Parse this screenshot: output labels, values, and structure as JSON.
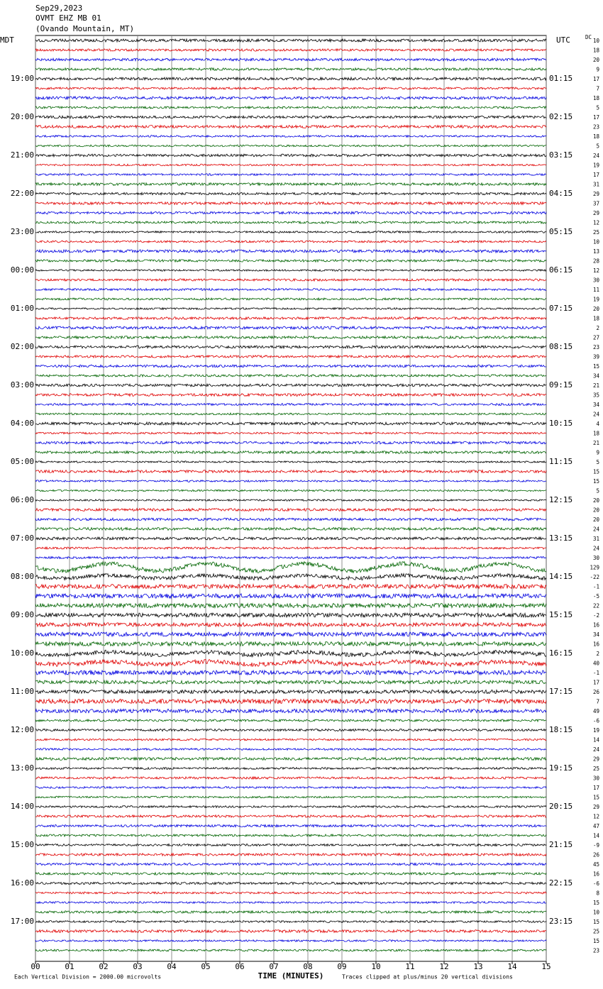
{
  "header": {
    "lines": [
      "Sep29,2023",
      "OVMT EHZ MB 01",
      "(Ovando Mountain, MT)"
    ]
  },
  "left_title": "MDT",
  "right_title": "UTC",
  "left_times": [
    "19:00",
    "20:00",
    "21:00",
    "22:00",
    "23:00",
    "00:00",
    "01:00",
    "02:00",
    "03:00",
    "04:00",
    "05:00",
    "06:00",
    "07:00",
    "08:00",
    "09:00",
    "10:00",
    "11:00",
    "12:00",
    "13:00",
    "14:00",
    "15:00",
    "16:00",
    "17:00"
  ],
  "right_times": [
    "01:15",
    "02:15",
    "03:15",
    "04:15",
    "05:15",
    "06:15",
    "07:15",
    "08:15",
    "09:15",
    "10:15",
    "11:15",
    "12:15",
    "13:15",
    "14:15",
    "15:15",
    "16:15",
    "17:15",
    "18:15",
    "19:15",
    "20:15",
    "21:15",
    "22:15",
    "23:15"
  ],
  "dc_title": "DC",
  "dc_values": [
    10,
    18,
    20,
    9,
    17,
    7,
    18,
    5,
    17,
    23,
    18,
    5,
    24,
    19,
    17,
    31,
    29,
    37,
    29,
    12,
    25,
    10,
    13,
    28,
    12,
    30,
    11,
    19,
    20,
    18,
    2,
    27,
    23,
    39,
    15,
    34,
    21,
    35,
    34,
    24,
    4,
    18,
    21,
    9,
    5,
    15,
    15,
    5,
    20,
    20,
    20,
    24,
    31,
    24,
    30,
    129,
    -22,
    -1,
    -5,
    22,
    -2,
    16,
    34,
    16,
    2,
    40,
    -1,
    17,
    26,
    7,
    49,
    -6,
    19,
    14,
    24,
    29,
    25,
    30,
    17,
    15,
    29,
    12,
    47,
    14,
    -9,
    26,
    45,
    16,
    -6,
    8,
    15,
    10,
    15,
    25,
    15,
    23
  ],
  "trace_colors": [
    "#000000",
    "#e00000",
    "#0000e0",
    "#006400"
  ],
  "x_axis": {
    "ticks": [
      "00",
      "01",
      "02",
      "03",
      "04",
      "05",
      "06",
      "07",
      "08",
      "09",
      "10",
      "11",
      "12",
      "13",
      "14",
      "15"
    ],
    "title": "TIME (MINUTES)"
  },
  "footer": {
    "left": "Each Vertical Division = 2000.00 microvolts",
    "right": "Traces clipped at plus/minus 20 vertical divisions"
  }
}
